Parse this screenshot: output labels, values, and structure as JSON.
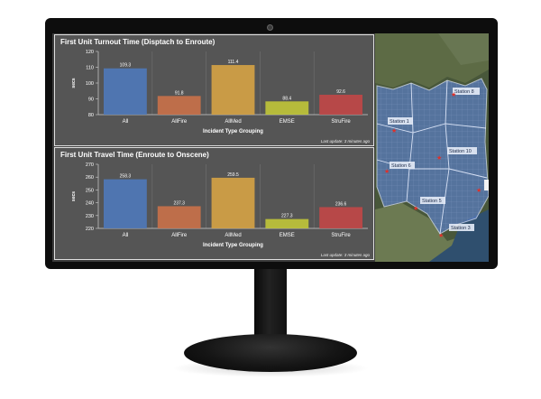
{
  "charts": [
    {
      "title": "First Unit Turnout Time (Disptach to Enroute)",
      "footer": "Last update: 3 minutes ago",
      "chart_data": {
        "type": "bar",
        "title": "First Unit Turnout Time (Disptach to Enroute)",
        "xlabel": "Incident Type Grouping",
        "ylabel": "secs",
        "ylim": [
          80,
          120
        ],
        "yticks": [
          80,
          90,
          100,
          110,
          120
        ],
        "categories": [
          "All",
          "AllFire",
          "AllMed",
          "EMSE",
          "StruFire"
        ],
        "values": [
          109.3,
          91.8,
          111.4,
          88.4,
          92.6
        ],
        "value_labels": [
          "109.3",
          "91.8",
          "111.4",
          "88.4",
          "92.6"
        ],
        "colors": [
          "#4f78b8",
          "#c8714a",
          "#d4a245",
          "#bfc43a",
          "#c04848"
        ],
        "grid": true
      }
    },
    {
      "title": "First Unit Travel Time (Enroute to Onscene)",
      "footer": "Last update: 3 minutes ago",
      "chart_data": {
        "type": "bar",
        "title": "First Unit Travel Time (Enroute to Onscene)",
        "xlabel": "Incident Type Grouping",
        "ylabel": "secs",
        "ylim": [
          220,
          270
        ],
        "yticks": [
          220,
          230,
          240,
          250,
          260,
          270
        ],
        "categories": [
          "All",
          "AllFire",
          "AllMed",
          "EMSE",
          "StruFire"
        ],
        "values": [
          258.3,
          237.3,
          259.5,
          227.3,
          236.6
        ],
        "value_labels": [
          "258.3",
          "237.3",
          "259.5",
          "227.3",
          "236.6"
        ],
        "colors": [
          "#4f78b8",
          "#c8714a",
          "#d4a245",
          "#bfc43a",
          "#c04848"
        ],
        "grid": true
      }
    }
  ],
  "map": {
    "stations": [
      "Station 8",
      "Station 1",
      "Station 10",
      "Station 6",
      "Station 5",
      "Station 3"
    ],
    "marker_icon": "star-icon",
    "marker_color": "#e0302a"
  }
}
